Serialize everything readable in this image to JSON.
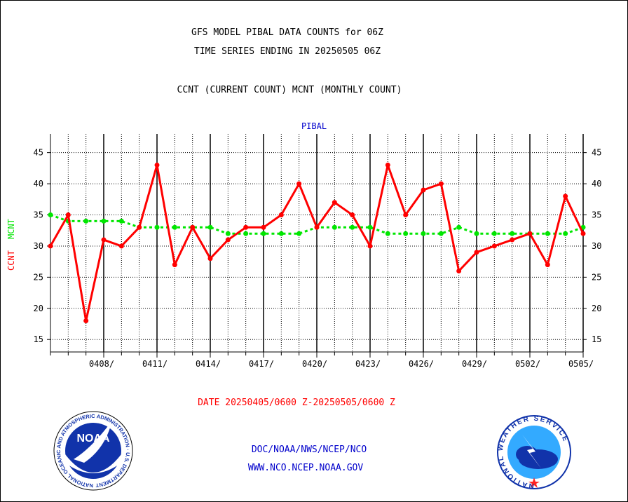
{
  "header": {
    "title_line1": "GFS MODEL PIBAL DATA COUNTS for 06Z",
    "title_line2": "TIME SERIES ENDING IN 20250505 06Z",
    "subtitle": "CCNT (CURRENT COUNT) MCNT (MONTHLY COUNT)"
  },
  "footer": {
    "date_range": "DATE 20250405/0600 Z-20250505/0600 Z",
    "org": "DOC/NOAA/NWS/NCEP/NCO",
    "url": "WWW.NCO.NCEP.NOAA.GOV",
    "noaa_logo_text": "NOAA",
    "noaa_ring_text": "NATIONAL OCEANIC AND ATMOSPHERIC ADMINISTRATION · U.S. DEPARTMENT OF COMMERCE",
    "nws_ring_text": "NATIONAL WEATHER SERVICE"
  },
  "colors": {
    "ccnt": "#ff0000",
    "mcnt": "#00e600",
    "plot_title": "#0000cc",
    "footer_date": "#ff0000",
    "footer_links": "#0000cc"
  },
  "chart_data": {
    "type": "line",
    "title": "PIBAL",
    "ylabel_ccnt": "CCNT",
    "ylabel_mcnt": "MCNT",
    "ylim": [
      13,
      48
    ],
    "yticks": [
      15,
      20,
      25,
      30,
      35,
      40,
      45
    ],
    "grid": true,
    "x_days": [
      "0405",
      "0406",
      "0407",
      "0408",
      "0409",
      "0410",
      "0411",
      "0412",
      "0413",
      "0414",
      "0415",
      "0416",
      "0417",
      "0418",
      "0419",
      "0420",
      "0421",
      "0422",
      "0423",
      "0424",
      "0425",
      "0426",
      "0427",
      "0428",
      "0429",
      "0430",
      "0501",
      "0502",
      "0503",
      "0504",
      "0505"
    ],
    "xtick_labels": [
      "0408/",
      "0411/",
      "0414/",
      "0417/",
      "0420/",
      "0423/",
      "0426/",
      "0429/",
      "0502/",
      "0505/"
    ],
    "series": [
      {
        "name": "CCNT",
        "values": [
          30,
          35,
          18,
          31,
          30,
          33,
          43,
          27,
          33,
          28,
          31,
          33,
          33,
          35,
          40,
          33,
          37,
          35,
          30,
          43,
          35,
          39,
          40,
          26,
          29,
          30,
          31,
          32,
          27,
          38,
          32
        ]
      },
      {
        "name": "MCNT",
        "values": [
          35,
          34,
          34,
          34,
          34,
          33,
          33,
          33,
          33,
          33,
          32,
          32,
          32,
          32,
          32,
          33,
          33,
          33,
          33,
          32,
          32,
          32,
          32,
          33,
          32,
          32,
          32,
          32,
          32,
          32,
          33
        ]
      }
    ]
  }
}
